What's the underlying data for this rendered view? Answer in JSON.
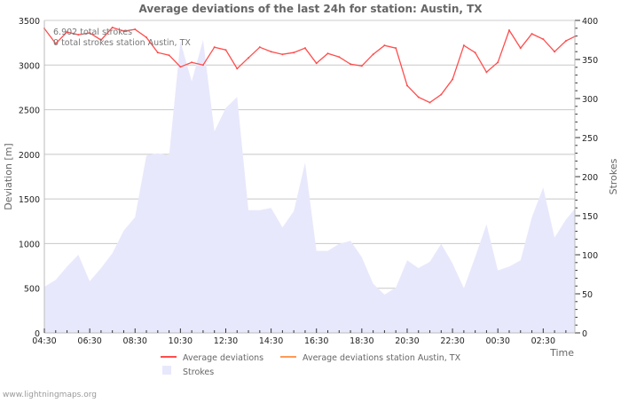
{
  "chart_data": {
    "type": "line",
    "title": "Average deviations of the last 24h for station: Austin, TX",
    "xlabel": "Time",
    "ylabel": "Deviation  [m]",
    "y2label": "Strokes",
    "ylim": [
      0,
      3500
    ],
    "y2lim": [
      0,
      400
    ],
    "yticks": [
      0,
      500,
      1000,
      1500,
      2000,
      2500,
      3000,
      3500
    ],
    "y2ticks": [
      0,
      50,
      100,
      150,
      200,
      250,
      300,
      350,
      400
    ],
    "xtick_labels": [
      "04:30",
      "06:30",
      "08:30",
      "10:30",
      "12:30",
      "14:30",
      "16:30",
      "18:30",
      "20:30",
      "22:30",
      "00:30",
      "02:30"
    ],
    "grid": true,
    "annotations": [
      "6.902 total strokes",
      "0 total strokes station Austin, TX"
    ],
    "series": [
      {
        "name": "Average deviations",
        "color": "#ff4d4d",
        "axis": "left",
        "values": [
          3410,
          3240,
          3370,
          3340,
          3360,
          3280,
          3420,
          3380,
          3400,
          3310,
          3140,
          3110,
          2980,
          3030,
          3000,
          3200,
          3170,
          2960,
          3080,
          3200,
          3150,
          3120,
          3140,
          3190,
          3020,
          3130,
          3090,
          3010,
          2990,
          3120,
          3220,
          3190,
          2770,
          2640,
          2580,
          2670,
          2840,
          3220,
          3140,
          2920,
          3030,
          3390,
          3190,
          3350,
          3290,
          3150,
          3270,
          3320
        ]
      },
      {
        "name": "Average deviations station Austin, TX",
        "color": "#ff9955",
        "axis": "left",
        "values": []
      },
      {
        "name": "Strokes",
        "color": "#e8e8fc",
        "axis": "right",
        "type": "area",
        "values": [
          59,
          68,
          85,
          100,
          66,
          83,
          102,
          131,
          148,
          227,
          230,
          227,
          373,
          322,
          375,
          258,
          288,
          302,
          157,
          157,
          160,
          135,
          156,
          218,
          105,
          105,
          114,
          118,
          97,
          63,
          49,
          58,
          93,
          83,
          91,
          114,
          89,
          57,
          97,
          139,
          80,
          85,
          93,
          148,
          186,
          122,
          145,
          159
        ]
      }
    ],
    "legend_placement": "bottom"
  },
  "footer": "www.lightningmaps.org"
}
